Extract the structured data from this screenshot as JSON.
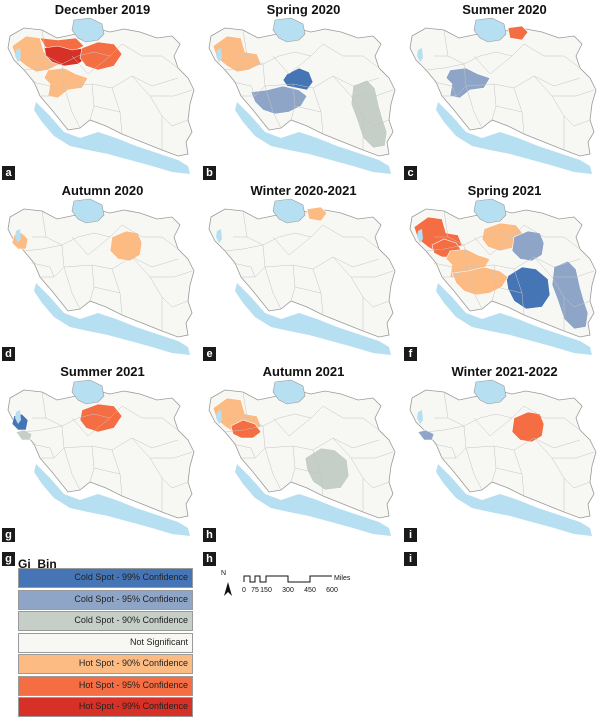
{
  "panels": [
    {
      "letter": "a",
      "title": "December 2019",
      "regions": [
        {
          "name": "northwest-west",
          "fill": "#fdbb84"
        },
        {
          "name": "north-caspian",
          "fill": "#f46d43"
        },
        {
          "name": "tehran-center",
          "fill": "#d73027"
        },
        {
          "name": "semnan-east",
          "fill": "#f46d43"
        },
        {
          "name": "isfahan-center",
          "fill": "#fdbb84"
        }
      ]
    },
    {
      "letter": "b",
      "title": "Spring 2020",
      "regions": [
        {
          "name": "northwest-west",
          "fill": "#fdbb84"
        },
        {
          "name": "yazd-center",
          "fill": "#4575b4"
        },
        {
          "name": "fars-south",
          "fill": "#8fa5c7"
        },
        {
          "name": "sistan-east",
          "fill": "#c5cec7"
        }
      ]
    },
    {
      "letter": "c",
      "title": "Summer 2020",
      "regions": [
        {
          "name": "north-khorasan",
          "fill": "#f46d43"
        },
        {
          "name": "isfahan-center",
          "fill": "#8fa5c7"
        }
      ]
    },
    {
      "letter": "d",
      "title": "Autumn 2020",
      "regions": [
        {
          "name": "kurdistan-west",
          "fill": "#fdbb84"
        },
        {
          "name": "east-south-khorasan",
          "fill": "#fdbb84"
        }
      ]
    },
    {
      "letter": "e",
      "title": "Winter 2020-2021",
      "regions": [
        {
          "name": "north-khorasan",
          "fill": "#fdbb84"
        }
      ]
    },
    {
      "letter": "f",
      "title": "Spring 2021",
      "regions": [
        {
          "name": "northwest-west",
          "fill": "#f46d43"
        },
        {
          "name": "west-central",
          "fill": "#f46d43"
        },
        {
          "name": "semnan-east",
          "fill": "#fdbb84"
        },
        {
          "name": "isfahan-center",
          "fill": "#fdbb84"
        },
        {
          "name": "east-south-khorasan",
          "fill": "#8fa5c7"
        },
        {
          "name": "kerman-southeast",
          "fill": "#4575b4"
        },
        {
          "name": "sistan-east",
          "fill": "#8fa5c7"
        },
        {
          "name": "fars-south",
          "fill": "#fdbb84"
        }
      ]
    },
    {
      "letter": "g",
      "title": "Summer 2021",
      "regions": [
        {
          "name": "kurdistan-west",
          "fill": "#4575b4"
        },
        {
          "name": "ilam-west",
          "fill": "#c5cec7"
        },
        {
          "name": "semnan-east",
          "fill": "#f46d43"
        }
      ]
    },
    {
      "letter": "h",
      "title": "Autumn 2021",
      "regions": [
        {
          "name": "northwest-west",
          "fill": "#fdbb84"
        },
        {
          "name": "west-central",
          "fill": "#f46d43"
        },
        {
          "name": "kerman-southeast",
          "fill": "#c5cec7"
        }
      ]
    },
    {
      "letter": "i",
      "title": "Winter 2021-2022",
      "regions": [
        {
          "name": "ilam-west",
          "fill": "#8fa5c7"
        },
        {
          "name": "east-south-khorasan",
          "fill": "#f46d43"
        }
      ]
    }
  ],
  "legend": {
    "title": "Gi_Bin",
    "items": [
      {
        "label": "Cold Spot - 99% Confidence",
        "color": "#4575b4"
      },
      {
        "label": "Cold Spot - 95% Confidence",
        "color": "#8fa5c7"
      },
      {
        "label": "Cold Spot - 90% Confidence",
        "color": "#c5cec7"
      },
      {
        "label": "Not Significant",
        "color": "#f7f7f3"
      },
      {
        "label": "Hot Spot - 90% Confidence",
        "color": "#fdbb84"
      },
      {
        "label": "Hot Spot - 95% Confidence",
        "color": "#f46d43"
      },
      {
        "label": "Hot Spot - 99% Confidence",
        "color": "#d73027"
      }
    ]
  },
  "scalebar": {
    "labels": [
      "0",
      "75",
      "150",
      "300",
      "450",
      "600"
    ],
    "unit": "Miles",
    "north": "N"
  },
  "colors": {
    "water": "#b7dff2",
    "land": "#f7f7f3",
    "border": "#9a9a9a"
  }
}
